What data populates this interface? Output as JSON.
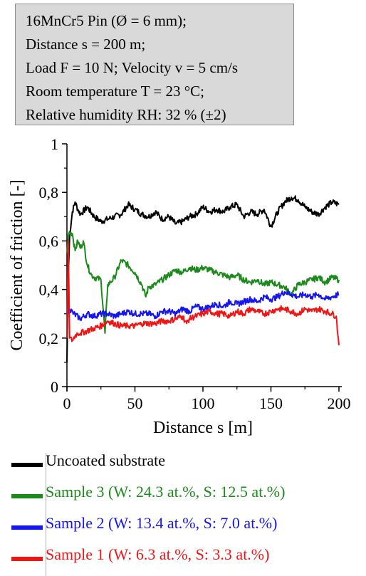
{
  "info": {
    "lines": [
      "16MnCr5 Pin (Ø = 6 mm);",
      "Distance s = 200 m;",
      "Load F = 10 N; Velocity  v = 5 cm/s",
      "Room temperature  T = 23 °C;",
      "Relative humidity RH: 32 % (±2)"
    ]
  },
  "chart_data": {
    "type": "line",
    "xlabel": "Distance s [m]",
    "ylabel": "Coefficient of friction [-]",
    "xlim": [
      0,
      200
    ],
    "ylim": [
      0,
      1
    ],
    "xticks": [
      "0",
      "50",
      "100",
      "150",
      "200"
    ],
    "yticks": [
      "0",
      "0,2",
      "0,4",
      "0,6",
      "0,8",
      "1"
    ],
    "grid": false,
    "legend_position": "bottom",
    "series": [
      {
        "name": "Uncoated substrate",
        "color": "#000000",
        "x": [
          0,
          1,
          2,
          4,
          6,
          8,
          10,
          15,
          20,
          25,
          30,
          35,
          40,
          45,
          50,
          55,
          60,
          65,
          70,
          75,
          80,
          85,
          90,
          95,
          100,
          105,
          110,
          115,
          120,
          125,
          130,
          135,
          140,
          145,
          150,
          155,
          160,
          165,
          170,
          175,
          180,
          185,
          190,
          195,
          200
        ],
        "y": [
          0.1,
          0.45,
          0.62,
          0.72,
          0.76,
          0.73,
          0.71,
          0.74,
          0.7,
          0.68,
          0.69,
          0.7,
          0.71,
          0.75,
          0.73,
          0.71,
          0.7,
          0.72,
          0.69,
          0.7,
          0.67,
          0.68,
          0.7,
          0.71,
          0.74,
          0.72,
          0.73,
          0.72,
          0.74,
          0.75,
          0.7,
          0.72,
          0.71,
          0.73,
          0.66,
          0.72,
          0.76,
          0.78,
          0.77,
          0.74,
          0.72,
          0.71,
          0.74,
          0.76,
          0.75
        ]
      },
      {
        "name": "Sample 3 (W: 24.3 at.%, S: 12.5 at.%)",
        "color": "#1b8a1b",
        "x": [
          0,
          1,
          2,
          4,
          6,
          8,
          10,
          12,
          15,
          18,
          20,
          25,
          28,
          30,
          32,
          35,
          40,
          45,
          50,
          55,
          58,
          60,
          65,
          70,
          75,
          80,
          85,
          90,
          95,
          100,
          105,
          110,
          115,
          120,
          125,
          130,
          135,
          140,
          145,
          150,
          155,
          160,
          165,
          170,
          175,
          180,
          185,
          190,
          195,
          200
        ],
        "y": [
          0.55,
          0.62,
          0.64,
          0.63,
          0.56,
          0.6,
          0.57,
          0.6,
          0.5,
          0.46,
          0.45,
          0.44,
          0.22,
          0.42,
          0.43,
          0.45,
          0.52,
          0.5,
          0.47,
          0.42,
          0.37,
          0.41,
          0.42,
          0.44,
          0.46,
          0.48,
          0.47,
          0.49,
          0.48,
          0.49,
          0.48,
          0.47,
          0.46,
          0.45,
          0.46,
          0.44,
          0.43,
          0.44,
          0.42,
          0.43,
          0.42,
          0.41,
          0.38,
          0.42,
          0.43,
          0.44,
          0.45,
          0.43,
          0.45,
          0.44
        ]
      },
      {
        "name": "Sample 2 (W: 13.4 at.%, S: 7.0 at.%)",
        "color": "#1515f0",
        "x": [
          0,
          2,
          5,
          10,
          15,
          20,
          25,
          30,
          35,
          40,
          45,
          50,
          55,
          60,
          65,
          70,
          75,
          80,
          85,
          90,
          95,
          100,
          105,
          110,
          115,
          120,
          125,
          130,
          135,
          140,
          145,
          150,
          155,
          160,
          165,
          170,
          175,
          180,
          185,
          190,
          195,
          200
        ],
        "y": [
          0.3,
          0.32,
          0.3,
          0.28,
          0.3,
          0.29,
          0.3,
          0.3,
          0.29,
          0.3,
          0.31,
          0.3,
          0.3,
          0.3,
          0.29,
          0.31,
          0.31,
          0.3,
          0.32,
          0.31,
          0.33,
          0.32,
          0.33,
          0.34,
          0.33,
          0.35,
          0.34,
          0.35,
          0.36,
          0.35,
          0.37,
          0.36,
          0.37,
          0.39,
          0.38,
          0.37,
          0.38,
          0.37,
          0.38,
          0.36,
          0.37,
          0.38
        ]
      },
      {
        "name": "Sample 1 (W: 6.3 at.%, S: 3.3 at.%)",
        "color": "#f01515",
        "x": [
          0,
          1,
          2,
          4,
          6,
          8,
          10,
          15,
          20,
          25,
          30,
          35,
          40,
          45,
          50,
          55,
          60,
          65,
          70,
          75,
          80,
          85,
          88,
          90,
          95,
          100,
          105,
          110,
          115,
          120,
          125,
          130,
          135,
          140,
          145,
          150,
          155,
          160,
          165,
          170,
          175,
          180,
          185,
          190,
          195,
          198,
          200
        ],
        "y": [
          0.2,
          0.6,
          0.2,
          0.19,
          0.21,
          0.22,
          0.22,
          0.23,
          0.24,
          0.25,
          0.27,
          0.26,
          0.25,
          0.25,
          0.25,
          0.26,
          0.26,
          0.26,
          0.27,
          0.27,
          0.28,
          0.29,
          0.26,
          0.28,
          0.29,
          0.3,
          0.31,
          0.3,
          0.3,
          0.29,
          0.31,
          0.3,
          0.32,
          0.31,
          0.3,
          0.31,
          0.32,
          0.32,
          0.31,
          0.3,
          0.32,
          0.31,
          0.32,
          0.31,
          0.3,
          0.29,
          0.17
        ]
      }
    ]
  }
}
